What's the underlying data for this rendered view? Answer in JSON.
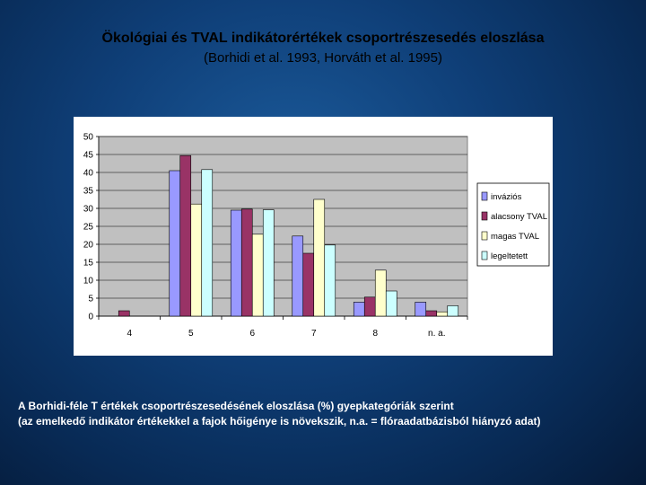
{
  "header": {
    "title": "Ökológiai és TVAL indikátorértékek csoportrészesedés eloszlása",
    "subtitle": "(Borhidi et al. 1993, Horváth et al. 1995)"
  },
  "caption": {
    "line1": "A Borhidi-féle T értékek csoportrészesedésének eloszlása (%) gyepkategóriák szerint",
    "line2": "(az emelkedő indikátor értékekkel a fajok hőigénye is növekszik, n.a. = flóraadatbázisból hiányzó adat)"
  },
  "chart_data": {
    "type": "bar",
    "title": "",
    "xlabel": "",
    "ylabel": "",
    "ylim": [
      0,
      50
    ],
    "yticks": [
      0,
      5,
      10,
      15,
      20,
      25,
      30,
      35,
      40,
      45,
      50
    ],
    "categories": [
      "4",
      "5",
      "6",
      "7",
      "8",
      "n. a."
    ],
    "grid": true,
    "legend_position": "right",
    "series": [
      {
        "name": "inváziós",
        "color": "#9999ff",
        "values": [
          0,
          40.5,
          29.5,
          22.3,
          3.9,
          3.9
        ]
      },
      {
        "name": "alacsony TVAL",
        "color": "#993366",
        "values": [
          1.5,
          44.7,
          29.8,
          17.5,
          5.3,
          1.5
        ]
      },
      {
        "name": "magas TVAL",
        "color": "#ffffcc",
        "values": [
          0,
          31.2,
          22.8,
          32.5,
          12.8,
          1.2
        ]
      },
      {
        "name": "legeltetett",
        "color": "#ccffff",
        "values": [
          0,
          40.8,
          29.6,
          19.8,
          7.0,
          2.9
        ]
      }
    ]
  }
}
